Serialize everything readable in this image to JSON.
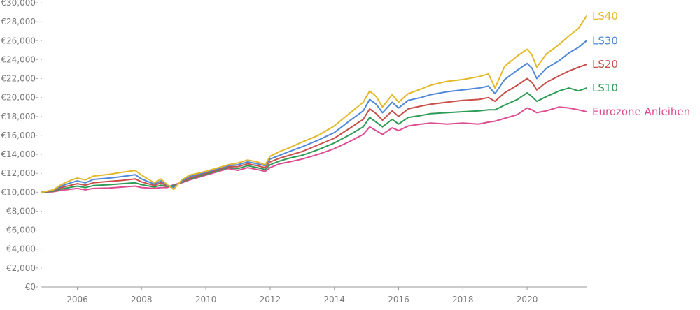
{
  "chart_data": {
    "type": "line",
    "title": "",
    "xlabel": "",
    "ylabel": "",
    "grid": "horizontal-dashed-stubs",
    "legend": "inline-right",
    "xlim": [
      2004.9,
      2021.85
    ],
    "ylim": [
      0,
      30000
    ],
    "x_ticks": [
      2006,
      2008,
      2010,
      2012,
      2014,
      2016,
      2018,
      2020
    ],
    "y_ticks": [
      {
        "value": 0,
        "label": "€0"
      },
      {
        "value": 2000,
        "label": "€2,000"
      },
      {
        "value": 4000,
        "label": "€4,000"
      },
      {
        "value": 6000,
        "label": "€6,000"
      },
      {
        "value": 8000,
        "label": "€8,000"
      },
      {
        "value": 10000,
        "label": "€10,000"
      },
      {
        "value": 12000,
        "label": "€12,000"
      },
      {
        "value": 14000,
        "label": "€14,000"
      },
      {
        "value": 16000,
        "label": "€16,000"
      },
      {
        "value": 18000,
        "label": "€18,000"
      },
      {
        "value": 20000,
        "label": "€20,000"
      },
      {
        "value": 22000,
        "label": "€22,000"
      },
      {
        "value": 24000,
        "label": "€24,000"
      },
      {
        "value": 26000,
        "label": "€26,000"
      },
      {
        "value": 28000,
        "label": "€28,000"
      },
      {
        "value": 30000,
        "label": "€30,000"
      }
    ],
    "x": [
      2004.9,
      2005.25,
      2005.5,
      2005.75,
      2006.0,
      2006.25,
      2006.5,
      2007.0,
      2007.4,
      2007.8,
      2008.0,
      2008.4,
      2008.6,
      2008.8,
      2009.0,
      2009.25,
      2009.5,
      2010.0,
      2010.4,
      2010.7,
      2011.0,
      2011.3,
      2011.6,
      2011.85,
      2012.0,
      2012.3,
      2012.6,
      2013.0,
      2013.5,
      2014.0,
      2014.5,
      2014.9,
      2015.1,
      2015.3,
      2015.5,
      2015.8,
      2016.0,
      2016.3,
      2016.7,
      2017.0,
      2017.5,
      2018.0,
      2018.5,
      2018.8,
      2019.0,
      2019.3,
      2019.7,
      2020.0,
      2020.15,
      2020.3,
      2020.6,
      2021.0,
      2021.3,
      2021.6,
      2021.85
    ],
    "series": [
      {
        "name": "LS40",
        "color": "#e3b92b",
        "values": [
          10000,
          10250,
          10800,
          11200,
          11500,
          11300,
          11700,
          11900,
          12100,
          12300,
          11800,
          11000,
          11400,
          10800,
          10300,
          11300,
          11800,
          12200,
          12600,
          12900,
          13100,
          13400,
          13200,
          12900,
          13800,
          14300,
          14700,
          15300,
          16000,
          17000,
          18400,
          19500,
          20700,
          20100,
          19000,
          20300,
          19500,
          20400,
          20900,
          21300,
          21700,
          21900,
          22200,
          22500,
          21000,
          23300,
          24400,
          25100,
          24500,
          23200,
          24600,
          25600,
          26500,
          27300,
          28600
        ]
      },
      {
        "name": "LS30",
        "color": "#4f88d8",
        "values": [
          10000,
          10200,
          10650,
          10950,
          11200,
          11000,
          11350,
          11500,
          11650,
          11850,
          11400,
          10850,
          11200,
          10750,
          10500,
          11200,
          11650,
          12100,
          12500,
          12800,
          12900,
          13200,
          13000,
          12800,
          13500,
          13900,
          14300,
          14800,
          15500,
          16300,
          17600,
          18600,
          19800,
          19300,
          18400,
          19500,
          18900,
          19700,
          20000,
          20300,
          20600,
          20800,
          21000,
          21200,
          20400,
          21900,
          22900,
          23600,
          23100,
          22000,
          23100,
          23900,
          24700,
          25300,
          26000
        ]
      },
      {
        "name": "LS20",
        "color": "#c9504a",
        "values": [
          10000,
          10150,
          10500,
          10700,
          10900,
          10750,
          11000,
          11150,
          11250,
          11400,
          11100,
          10700,
          11000,
          10650,
          10600,
          11100,
          11500,
          12000,
          12400,
          12700,
          12700,
          13000,
          12800,
          12600,
          13200,
          13600,
          13900,
          14300,
          15000,
          15700,
          16800,
          17700,
          18800,
          18300,
          17600,
          18600,
          18000,
          18800,
          19100,
          19300,
          19500,
          19700,
          19800,
          20000,
          19600,
          20500,
          21300,
          22000,
          21600,
          20800,
          21600,
          22300,
          22800,
          23200,
          23500
        ]
      },
      {
        "name": "LS10",
        "color": "#2e9b57",
        "values": [
          10000,
          10100,
          10350,
          10500,
          10650,
          10500,
          10700,
          10800,
          10900,
          11000,
          10800,
          10550,
          10750,
          10600,
          10700,
          11050,
          11400,
          11900,
          12300,
          12600,
          12500,
          12800,
          12600,
          12400,
          12900,
          13300,
          13600,
          13900,
          14500,
          15200,
          16100,
          16900,
          17900,
          17400,
          16900,
          17700,
          17200,
          17900,
          18100,
          18300,
          18400,
          18500,
          18600,
          18700,
          18700,
          19200,
          19800,
          20500,
          20100,
          19600,
          20100,
          20700,
          21000,
          20700,
          21000
        ]
      },
      {
        "name": "Eurozone Anleihen",
        "color": "#dc4d92",
        "values": [
          10000,
          10050,
          10200,
          10300,
          10400,
          10250,
          10400,
          10450,
          10550,
          10650,
          10500,
          10400,
          10500,
          10500,
          10800,
          11000,
          11300,
          11800,
          12200,
          12500,
          12300,
          12600,
          12400,
          12200,
          12600,
          13000,
          13200,
          13500,
          14000,
          14600,
          15400,
          16100,
          16900,
          16500,
          16100,
          16800,
          16500,
          17000,
          17200,
          17300,
          17200,
          17300,
          17200,
          17400,
          17500,
          17800,
          18200,
          18900,
          18700,
          18400,
          18600,
          19000,
          18900,
          18700,
          18500
        ]
      }
    ]
  }
}
